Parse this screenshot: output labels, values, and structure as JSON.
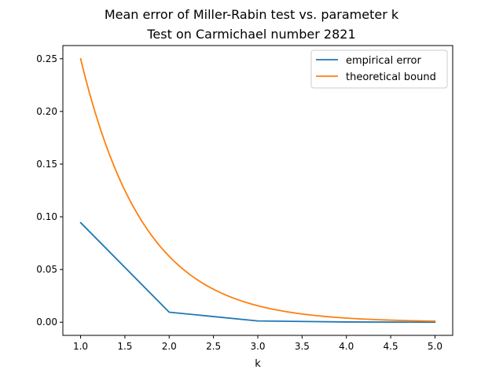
{
  "chart_data": {
    "type": "line",
    "title": "Mean error of Miller-Rabin test vs. parameter k",
    "subtitle": "Test on Carmichael number 2821",
    "xlabel": "k",
    "ylabel": "",
    "xlim": [
      0.8,
      5.2
    ],
    "ylim": [
      -0.0125,
      0.2625
    ],
    "xticks": [
      1.0,
      1.5,
      2.0,
      2.5,
      3.0,
      3.5,
      4.0,
      4.5,
      5.0
    ],
    "xtick_labels": [
      "1.0",
      "1.5",
      "2.0",
      "2.5",
      "3.0",
      "3.5",
      "4.0",
      "4.5",
      "5.0"
    ],
    "yticks": [
      0.0,
      0.05,
      0.1,
      0.15,
      0.2,
      0.25
    ],
    "ytick_labels": [
      "0.00",
      "0.05",
      "0.10",
      "0.15",
      "0.20",
      "0.25"
    ],
    "grid": false,
    "legend_position": "top-right",
    "series": [
      {
        "name": "empirical error",
        "color": "#1f77b4",
        "x": [
          1,
          2,
          3,
          4,
          5
        ],
        "y": [
          0.0945,
          0.0095,
          0.0012,
          0.0002,
          0.0
        ]
      },
      {
        "name": "theoretical bound",
        "color": "#ff7f0e",
        "formula": "4^(-k)",
        "x": [
          1.0,
          1.25,
          1.5,
          1.75,
          2.0,
          2.25,
          2.5,
          2.75,
          3.0,
          3.25,
          3.5,
          3.75,
          4.0,
          4.25,
          4.5,
          4.75,
          5.0
        ],
        "y": [
          0.25,
          0.1768,
          0.125,
          0.0884,
          0.0625,
          0.0442,
          0.0313,
          0.0221,
          0.0156,
          0.011,
          0.0078,
          0.0055,
          0.0039,
          0.0028,
          0.002,
          0.0014,
          0.001
        ]
      }
    ]
  }
}
